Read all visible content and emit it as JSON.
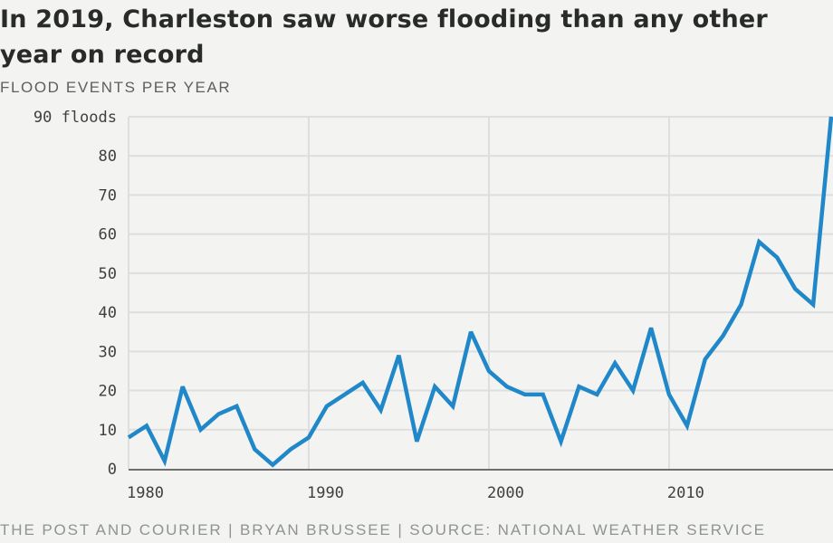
{
  "header": {
    "title": "In 2019, Charleston saw worse flooding than any other year on record",
    "subtitle": "FLOOD EVENTS PER YEAR"
  },
  "footer": {
    "text": "THE POST AND COURIER | BRYAN BRUSSEE | SOURCE: NATIONAL WEATHER SERVICE"
  },
  "colors": {
    "line": "#2088c9",
    "grid": "#dedede",
    "axis": "#6f6f6f",
    "background": "#f3f3f2"
  },
  "chart_data": {
    "type": "line",
    "title": "In 2019, Charleston saw worse flooding than any other year on record",
    "subtitle": "FLOOD EVENTS PER YEAR",
    "xlabel": "",
    "ylabel": "",
    "x": [
      1980,
      1981,
      1982,
      1983,
      1984,
      1985,
      1986,
      1987,
      1988,
      1989,
      1990,
      1991,
      1992,
      1993,
      1994,
      1995,
      1996,
      1997,
      1998,
      1999,
      2000,
      2001,
      2002,
      2003,
      2004,
      2005,
      2006,
      2007,
      2008,
      2009,
      2010,
      2011,
      2012,
      2013,
      2014,
      2015,
      2016,
      2017,
      2018,
      2019
    ],
    "series": [
      {
        "name": "Flood events",
        "values": [
          8,
          11,
          2,
          21,
          10,
          14,
          16,
          5,
          1,
          5,
          8,
          16,
          19,
          22,
          15,
          29,
          7,
          21,
          16,
          35,
          25,
          21,
          19,
          19,
          7,
          21,
          19,
          27,
          20,
          36,
          19,
          11,
          28,
          34,
          42,
          58,
          54,
          46,
          42,
          90
        ]
      }
    ],
    "xlim": [
      1980,
      2019
    ],
    "ylim": [
      0,
      90
    ],
    "x_ticks": [
      1980,
      1990,
      2000,
      2010
    ],
    "x_tick_labels": [
      "1980",
      "1990",
      "2000",
      "2010"
    ],
    "y_ticks": [
      0,
      10,
      20,
      30,
      40,
      50,
      60,
      70,
      80,
      90
    ],
    "y_tick_labels": [
      "0",
      "10",
      "20",
      "30",
      "40",
      "50",
      "60",
      "70",
      "80",
      "90 floods"
    ],
    "grid": true,
    "legend": "none",
    "source": "NATIONAL WEATHER SERVICE"
  }
}
